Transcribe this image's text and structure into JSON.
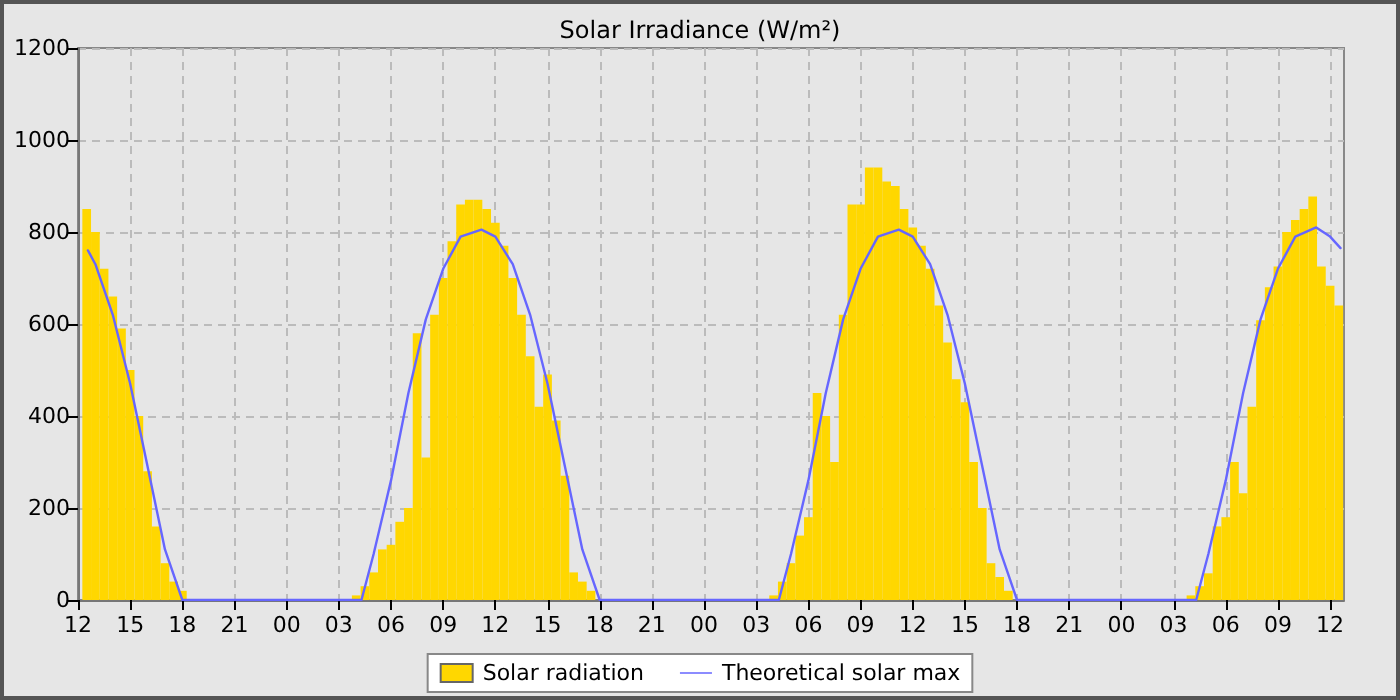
{
  "chart_data": {
    "type": "bar",
    "title": "Solar Irradiance (W/m²)",
    "xlim": [
      12,
      84.8
    ],
    "xticks": [
      {
        "value": 12,
        "label": "12"
      },
      {
        "value": 15,
        "label": "15"
      },
      {
        "value": 18,
        "label": "18"
      },
      {
        "value": 21,
        "label": "21"
      },
      {
        "value": 24,
        "label": "00"
      },
      {
        "value": 27,
        "label": "03"
      },
      {
        "value": 30,
        "label": "06"
      },
      {
        "value": 33,
        "label": "09"
      },
      {
        "value": 36,
        "label": "12"
      },
      {
        "value": 39,
        "label": "15"
      },
      {
        "value": 42,
        "label": "18"
      },
      {
        "value": 45,
        "label": "21"
      },
      {
        "value": 48,
        "label": "00"
      },
      {
        "value": 51,
        "label": "03"
      },
      {
        "value": 54,
        "label": "06"
      },
      {
        "value": 57,
        "label": "09"
      },
      {
        "value": 60,
        "label": "12"
      },
      {
        "value": 63,
        "label": "15"
      },
      {
        "value": 66,
        "label": "18"
      },
      {
        "value": 69,
        "label": "21"
      },
      {
        "value": 72,
        "label": "00"
      },
      {
        "value": 75,
        "label": "03"
      },
      {
        "value": 78,
        "label": "06"
      },
      {
        "value": 81,
        "label": "09"
      },
      {
        "value": 84,
        "label": "12"
      }
    ],
    "ylim": [
      0,
      1200
    ],
    "yticks": [
      0,
      200,
      400,
      600,
      800,
      1000,
      1200
    ],
    "grid": true,
    "legend": "bottom",
    "series": [
      {
        "name": "Solar radiation",
        "color": "#ffd700",
        "x": [
          12.5,
          13,
          13.5,
          14,
          14.5,
          15,
          15.5,
          16,
          16.5,
          17,
          17.5,
          18,
          28,
          28.5,
          29,
          29.5,
          30,
          30.5,
          31,
          31.5,
          32,
          32.5,
          33,
          33.5,
          34,
          34.5,
          35,
          35.5,
          36,
          36.5,
          37,
          37.5,
          38,
          38.5,
          39,
          39.5,
          40,
          40.5,
          41,
          41.5,
          52,
          52.5,
          53,
          53.5,
          54,
          54.5,
          55,
          55.5,
          56,
          56.5,
          57,
          57.5,
          58,
          58.5,
          59,
          59.5,
          60,
          60.5,
          61,
          61.5,
          62,
          62.5,
          63,
          63.5,
          64,
          64.5,
          65,
          65.5,
          76,
          76.5,
          77,
          77.5,
          78,
          78.5,
          79,
          79.5,
          80,
          80.5,
          81,
          81.5,
          82,
          82.5,
          83,
          83.5,
          84,
          84.5
        ],
        "values": [
          850,
          800,
          720,
          660,
          590,
          500,
          400,
          280,
          160,
          80,
          40,
          20,
          10,
          30,
          60,
          110,
          120,
          170,
          200,
          580,
          310,
          620,
          700,
          780,
          860,
          870,
          870,
          850,
          820,
          770,
          700,
          620,
          530,
          420,
          490,
          390,
          270,
          60,
          40,
          20,
          10,
          40,
          80,
          140,
          180,
          450,
          400,
          300,
          620,
          860,
          860,
          940,
          940,
          910,
          900,
          850,
          810,
          770,
          720,
          640,
          560,
          480,
          430,
          300,
          200,
          80,
          50,
          20,
          10,
          30,
          58,
          160,
          180,
          300,
          232,
          420,
          608,
          680,
          725,
          800,
          826,
          850,
          877,
          725,
          683,
          640
        ]
      },
      {
        "name": "Theoretical solar max",
        "type": "line",
        "color": "#6666ff",
        "marker": "none",
        "x": [
          12.57,
          13,
          14,
          15,
          16,
          17,
          18,
          28.3,
          29,
          30,
          31,
          32,
          33,
          34,
          35.2,
          36,
          37,
          38,
          39,
          40,
          41,
          42,
          52.3,
          53,
          54,
          55,
          56,
          57,
          58,
          59.2,
          60,
          61,
          62,
          63,
          64,
          65,
          66,
          76.3,
          77,
          78,
          79,
          80,
          81,
          82,
          83.2,
          84,
          84.6
        ],
        "values": [
          760,
          730,
          620,
          470,
          290,
          110,
          0,
          0,
          100,
          260,
          450,
          610,
          720,
          790,
          805,
          790,
          730,
          620,
          470,
          290,
          110,
          0,
          0,
          100,
          260,
          450,
          610,
          720,
          790,
          805,
          790,
          730,
          620,
          470,
          290,
          110,
          0,
          0,
          100,
          260,
          450,
          610,
          720,
          790,
          810,
          790,
          765
        ]
      }
    ]
  }
}
